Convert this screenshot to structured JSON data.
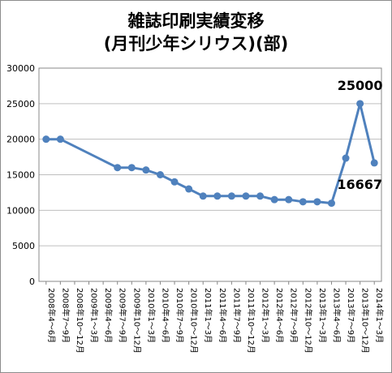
{
  "chart_data": {
    "type": "line",
    "title_line1": "雑誌印刷実績変移",
    "title_line2": "(月刊少年シリウス)(部)",
    "xlabel": "",
    "ylabel": "",
    "ylim": [
      0,
      30000
    ],
    "yticks": [
      0,
      5000,
      10000,
      15000,
      20000,
      25000,
      30000
    ],
    "grid": true,
    "series_color": "#4f81bd",
    "x": [
      "2008年4～6月",
      "2008年7～9月",
      "2008年10～12月",
      "2009年1～3月",
      "2009年4～6月",
      "2009年7～9月",
      "2009年10～12月",
      "2010年1～3月",
      "2010年4～6月",
      "2010年7～9月",
      "2010年10～12月",
      "2011年1～3月",
      "2011年4～6月",
      "2011年7～9月",
      "2011年10～12月",
      "2012年1～3月",
      "2012年4～6月",
      "2012年7～9月",
      "2012年10～12月",
      "2013年1～3月",
      "2013年4～6月",
      "2013年7～9月",
      "2013年10～12月",
      "2014年1～3月"
    ],
    "series": [
      {
        "values": [
          20000,
          20000,
          null,
          null,
          null,
          16000,
          16000,
          15667,
          15000,
          14000,
          13000,
          12000,
          12000,
          12000,
          12000,
          12000,
          11500,
          11500,
          11200,
          11200,
          11000,
          17333,
          25000,
          16667
        ]
      }
    ],
    "annotations": [
      {
        "text": "25000",
        "index": 22
      },
      {
        "text": "16667",
        "index": 23
      }
    ]
  }
}
